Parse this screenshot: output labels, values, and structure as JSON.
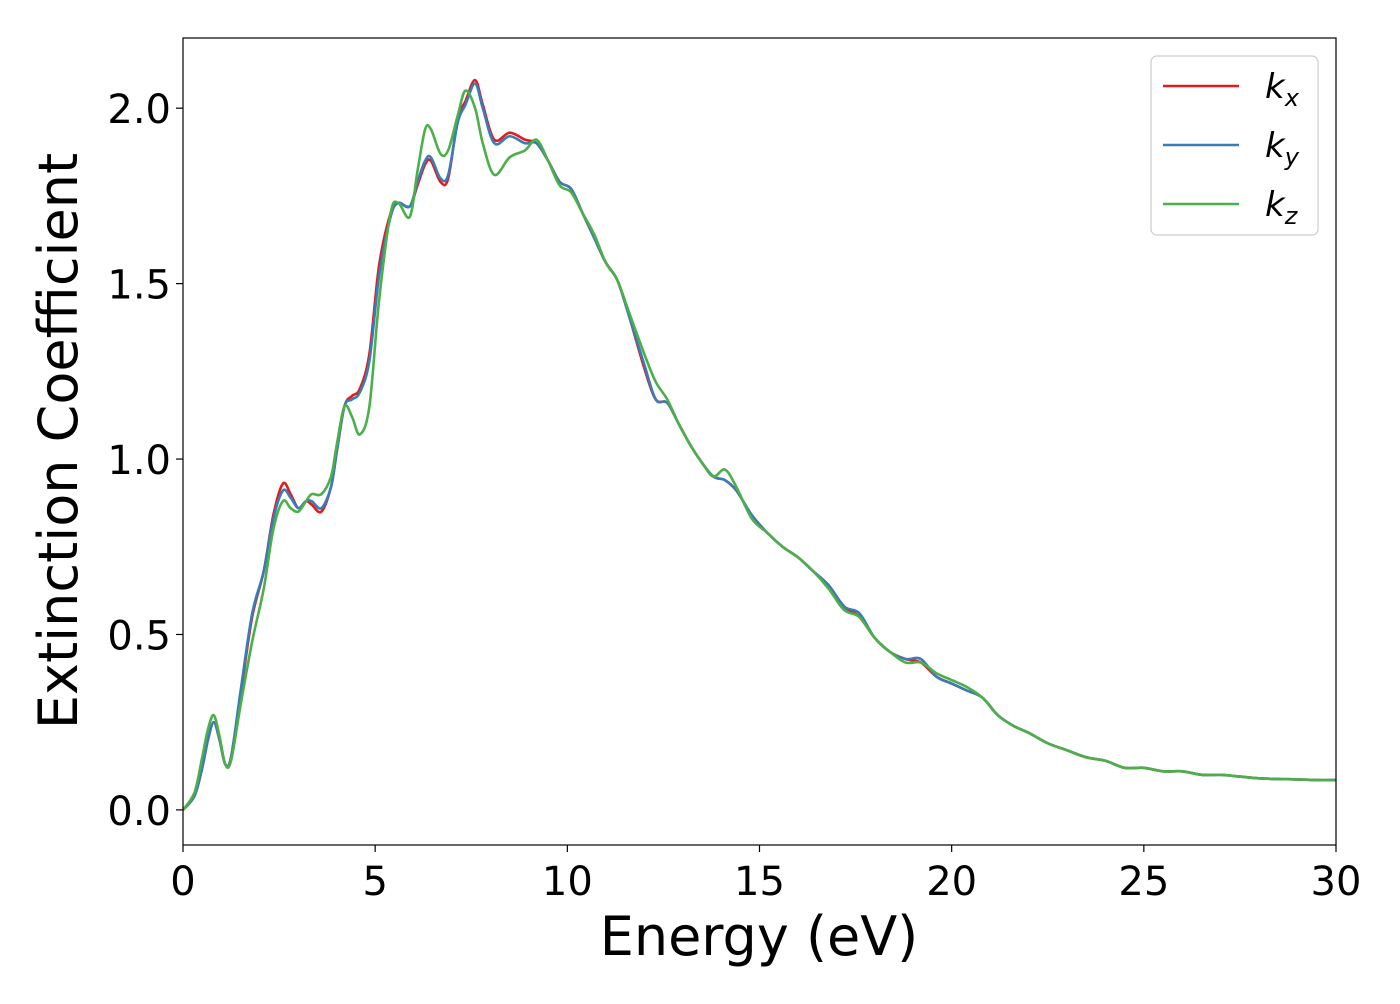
{
  "chart_data": {
    "type": "line",
    "title": "",
    "xlabel": "Energy (eV)",
    "ylabel": "Extinction Coefficient",
    "xlim": [
      0,
      30
    ],
    "ylim": [
      -0.1,
      2.2
    ],
    "xticks": [
      0,
      5,
      10,
      15,
      20,
      25,
      30
    ],
    "xtick_labels": [
      "0",
      "5",
      "10",
      "15",
      "20",
      "25",
      "30"
    ],
    "yticks": [
      0.0,
      0.5,
      1.0,
      1.5,
      2.0
    ],
    "ytick_labels": [
      "0.0",
      "0.5",
      "1.0",
      "1.5",
      "2.0"
    ],
    "grid": false,
    "legend_position": "top-right",
    "series": [
      {
        "name": "k",
        "subscript": "x",
        "color": "#e41a1c",
        "x": [
          0,
          0.3,
          0.5,
          0.65,
          0.8,
          0.95,
          1.1,
          1.25,
          1.5,
          1.8,
          2.1,
          2.35,
          2.6,
          2.8,
          3.0,
          3.2,
          3.35,
          3.6,
          3.85,
          4.0,
          4.2,
          4.4,
          4.6,
          4.85,
          5.1,
          5.4,
          5.6,
          5.9,
          6.1,
          6.3,
          6.45,
          6.7,
          6.9,
          7.15,
          7.35,
          7.6,
          7.8,
          8.1,
          8.5,
          8.9,
          9.2,
          9.5,
          9.8,
          10.1,
          10.4,
          10.7,
          11.0,
          11.3,
          11.6,
          12.0,
          12.3,
          12.6,
          12.9,
          13.2,
          13.5,
          13.8,
          14.1,
          14.4,
          14.8,
          15.2,
          15.6,
          16.0,
          16.4,
          16.8,
          17.2,
          17.6,
          18.0,
          18.4,
          18.8,
          19.2,
          19.6,
          20.0,
          20.4,
          20.8,
          21.2,
          21.6,
          22.0,
          22.5,
          23.0,
          23.5,
          24.0,
          24.5,
          25.0,
          25.5,
          26.0,
          26.5,
          27.0,
          27.5,
          28.0,
          28.5,
          29.0,
          29.5,
          30.0
        ],
        "y": [
          0.0,
          0.04,
          0.12,
          0.2,
          0.25,
          0.2,
          0.13,
          0.15,
          0.33,
          0.55,
          0.68,
          0.84,
          0.93,
          0.9,
          0.86,
          0.88,
          0.87,
          0.85,
          0.92,
          1.02,
          1.15,
          1.18,
          1.2,
          1.3,
          1.55,
          1.7,
          1.73,
          1.72,
          1.78,
          1.84,
          1.85,
          1.79,
          1.8,
          1.97,
          2.02,
          2.08,
          2.01,
          1.91,
          1.93,
          1.91,
          1.9,
          1.85,
          1.79,
          1.77,
          1.7,
          1.63,
          1.56,
          1.51,
          1.41,
          1.26,
          1.17,
          1.16,
          1.1,
          1.04,
          0.99,
          0.95,
          0.94,
          0.91,
          0.84,
          0.79,
          0.75,
          0.72,
          0.68,
          0.64,
          0.58,
          0.55,
          0.49,
          0.45,
          0.43,
          0.42,
          0.38,
          0.36,
          0.34,
          0.32,
          0.27,
          0.24,
          0.22,
          0.19,
          0.17,
          0.15,
          0.14,
          0.12,
          0.12,
          0.11,
          0.11,
          0.1,
          0.1,
          0.095,
          0.09,
          0.088,
          0.087,
          0.085,
          0.085
        ]
      },
      {
        "name": "k",
        "subscript": "y",
        "color": "#377eb8",
        "x": [
          0,
          0.3,
          0.5,
          0.65,
          0.8,
          0.95,
          1.1,
          1.25,
          1.5,
          1.8,
          2.1,
          2.35,
          2.6,
          2.8,
          3.0,
          3.2,
          3.35,
          3.6,
          3.85,
          4.0,
          4.2,
          4.4,
          4.6,
          4.85,
          5.1,
          5.4,
          5.6,
          5.9,
          6.1,
          6.3,
          6.45,
          6.7,
          6.9,
          7.15,
          7.35,
          7.6,
          7.8,
          8.1,
          8.5,
          8.9,
          9.2,
          9.5,
          9.8,
          10.1,
          10.4,
          10.7,
          11.0,
          11.3,
          11.6,
          12.0,
          12.3,
          12.6,
          12.9,
          13.2,
          13.5,
          13.8,
          14.1,
          14.4,
          14.8,
          15.2,
          15.6,
          16.0,
          16.4,
          16.8,
          17.2,
          17.6,
          18.0,
          18.4,
          18.8,
          19.2,
          19.6,
          20.0,
          20.4,
          20.8,
          21.2,
          21.6,
          22.0,
          22.5,
          23.0,
          23.5,
          24.0,
          24.5,
          25.0,
          25.5,
          26.0,
          26.5,
          27.0,
          27.5,
          28.0,
          28.5,
          29.0,
          29.5,
          30.0
        ],
        "y": [
          0.0,
          0.04,
          0.12,
          0.2,
          0.25,
          0.2,
          0.13,
          0.15,
          0.34,
          0.56,
          0.68,
          0.83,
          0.91,
          0.89,
          0.86,
          0.88,
          0.88,
          0.86,
          0.92,
          1.02,
          1.15,
          1.17,
          1.19,
          1.28,
          1.52,
          1.69,
          1.73,
          1.72,
          1.79,
          1.85,
          1.86,
          1.8,
          1.81,
          1.96,
          2.01,
          2.07,
          2.0,
          1.9,
          1.92,
          1.9,
          1.9,
          1.85,
          1.79,
          1.77,
          1.7,
          1.63,
          1.56,
          1.51,
          1.41,
          1.27,
          1.17,
          1.16,
          1.1,
          1.04,
          0.99,
          0.95,
          0.94,
          0.91,
          0.84,
          0.79,
          0.75,
          0.72,
          0.68,
          0.64,
          0.58,
          0.56,
          0.49,
          0.45,
          0.43,
          0.43,
          0.38,
          0.36,
          0.34,
          0.32,
          0.27,
          0.24,
          0.22,
          0.19,
          0.17,
          0.15,
          0.14,
          0.12,
          0.12,
          0.11,
          0.11,
          0.1,
          0.1,
          0.095,
          0.09,
          0.088,
          0.087,
          0.085,
          0.085
        ]
      },
      {
        "name": "k",
        "subscript": "z",
        "color": "#4daf4a",
        "x": [
          0,
          0.3,
          0.5,
          0.65,
          0.8,
          0.95,
          1.1,
          1.25,
          1.5,
          1.8,
          2.1,
          2.35,
          2.6,
          2.8,
          3.0,
          3.2,
          3.35,
          3.6,
          3.85,
          4.0,
          4.2,
          4.4,
          4.6,
          4.85,
          5.1,
          5.4,
          5.6,
          5.9,
          6.1,
          6.3,
          6.45,
          6.7,
          6.9,
          7.15,
          7.35,
          7.6,
          7.8,
          8.1,
          8.5,
          8.9,
          9.2,
          9.5,
          9.8,
          10.1,
          10.4,
          10.7,
          11.0,
          11.3,
          11.6,
          12.0,
          12.3,
          12.6,
          12.9,
          13.2,
          13.5,
          13.8,
          14.1,
          14.4,
          14.8,
          15.2,
          15.6,
          16.0,
          16.4,
          16.8,
          17.2,
          17.6,
          18.0,
          18.4,
          18.8,
          19.2,
          19.6,
          20.0,
          20.4,
          20.8,
          21.2,
          21.6,
          22.0,
          22.5,
          23.0,
          23.5,
          24.0,
          24.5,
          25.0,
          25.5,
          26.0,
          26.5,
          27.0,
          27.5,
          28.0,
          28.5,
          29.0,
          29.5,
          30.0
        ],
        "y": [
          0.0,
          0.05,
          0.15,
          0.23,
          0.27,
          0.21,
          0.13,
          0.14,
          0.3,
          0.48,
          0.63,
          0.8,
          0.88,
          0.86,
          0.85,
          0.88,
          0.9,
          0.9,
          0.95,
          1.04,
          1.15,
          1.12,
          1.07,
          1.15,
          1.45,
          1.7,
          1.73,
          1.69,
          1.82,
          1.94,
          1.94,
          1.87,
          1.88,
          1.98,
          2.05,
          2.0,
          1.9,
          1.81,
          1.86,
          1.88,
          1.91,
          1.85,
          1.78,
          1.76,
          1.7,
          1.64,
          1.56,
          1.51,
          1.42,
          1.3,
          1.22,
          1.17,
          1.1,
          1.04,
          0.99,
          0.95,
          0.97,
          0.92,
          0.83,
          0.79,
          0.75,
          0.72,
          0.68,
          0.63,
          0.57,
          0.55,
          0.49,
          0.45,
          0.42,
          0.42,
          0.39,
          0.37,
          0.35,
          0.32,
          0.27,
          0.24,
          0.22,
          0.19,
          0.17,
          0.15,
          0.14,
          0.12,
          0.12,
          0.11,
          0.11,
          0.1,
          0.1,
          0.095,
          0.09,
          0.088,
          0.087,
          0.085,
          0.085
        ]
      }
    ]
  }
}
